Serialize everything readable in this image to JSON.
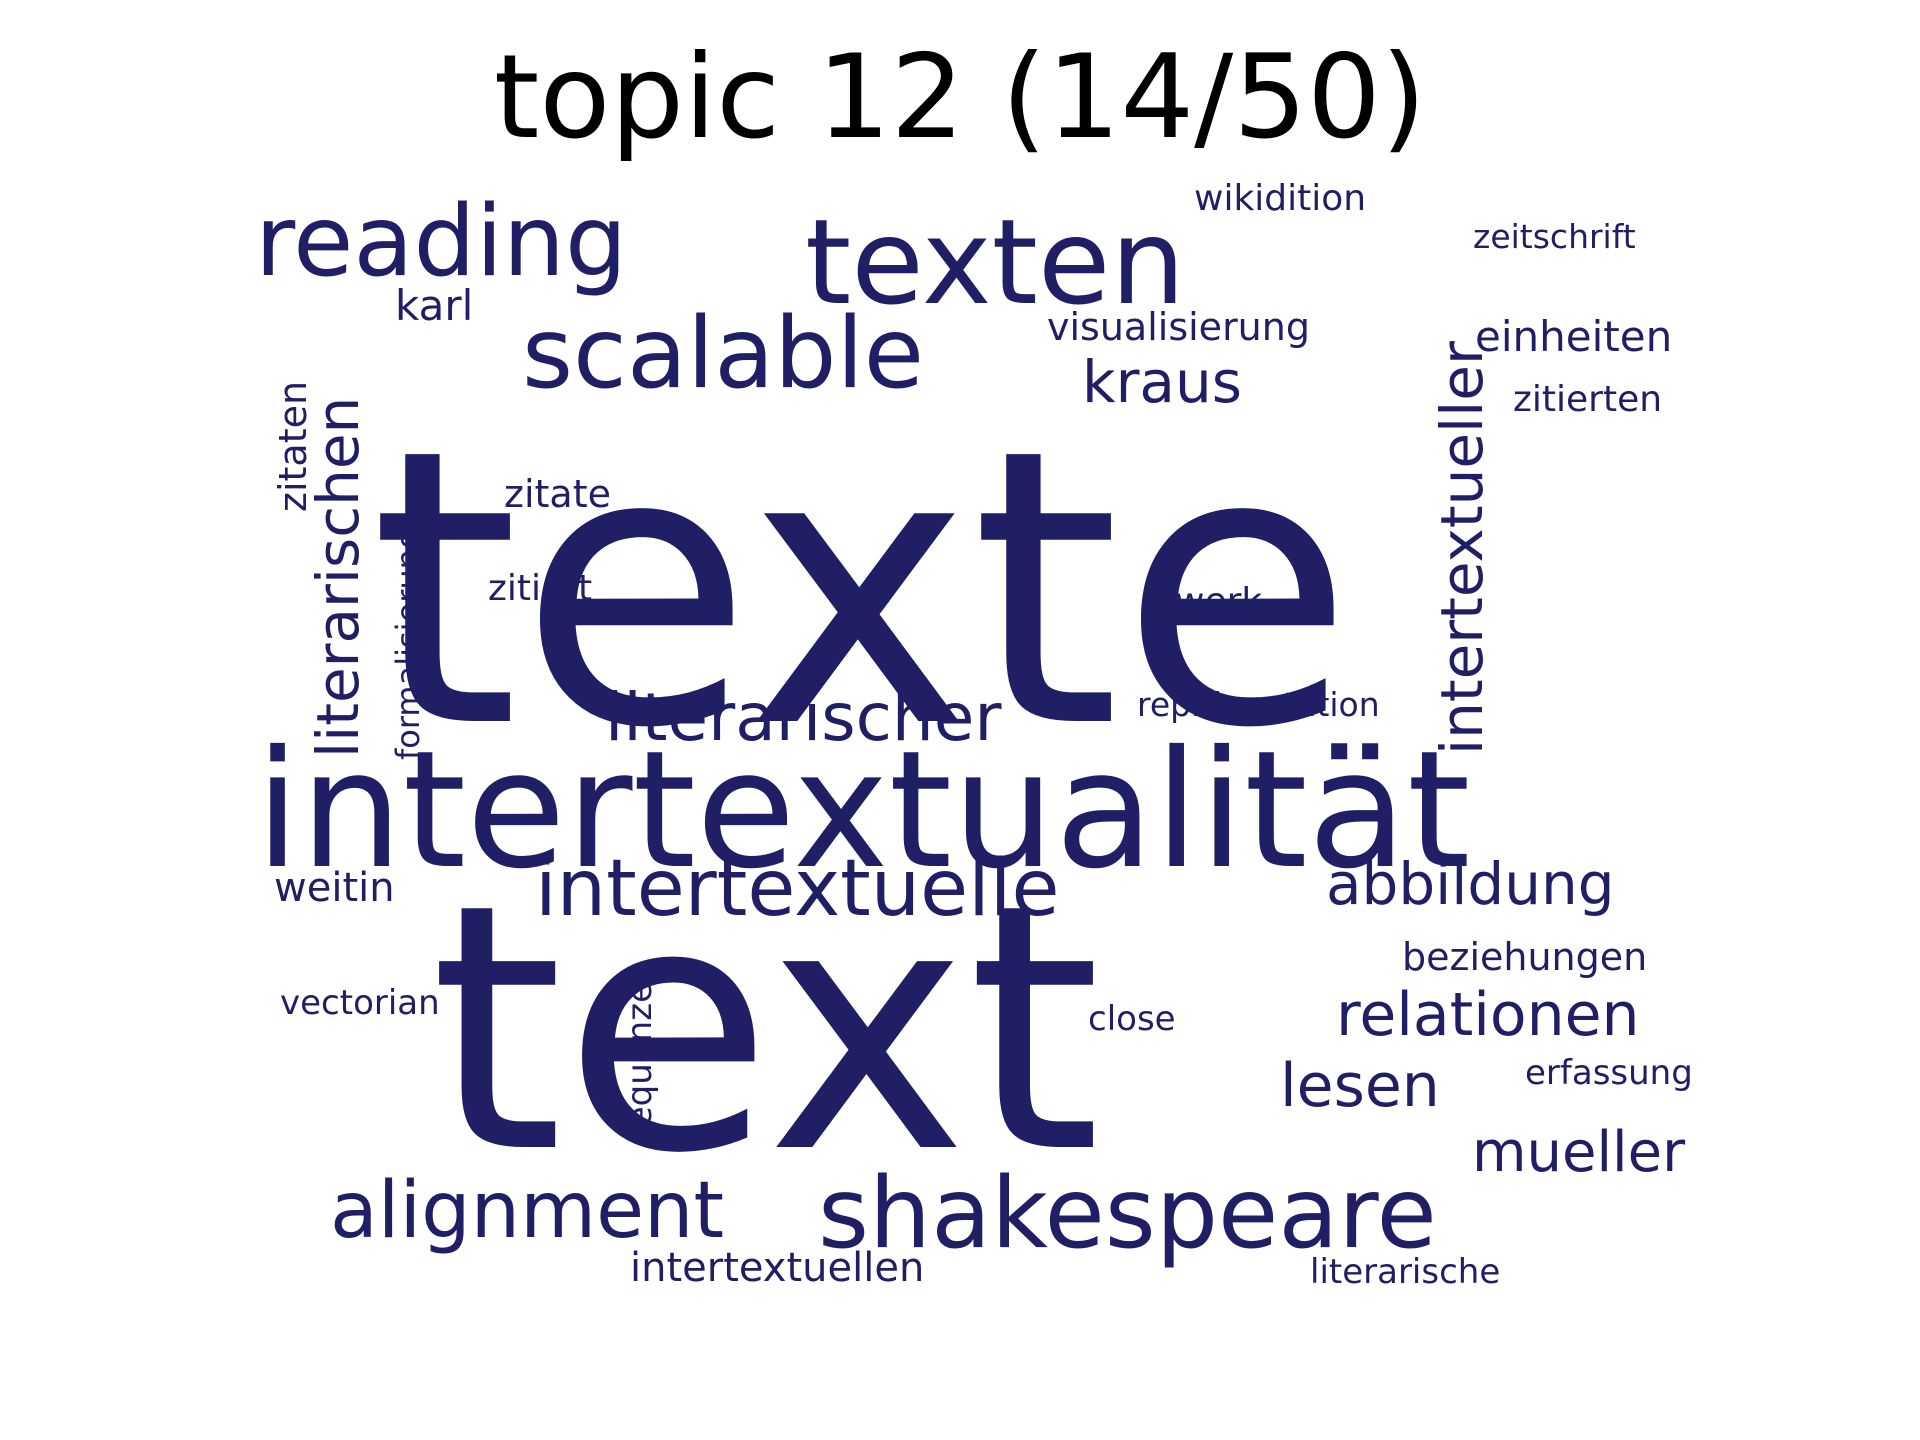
{
  "title": "topic 12 (14/50)",
  "word_color": "#201f66",
  "words": {
    "texte": "texte",
    "text": "text",
    "intertextualitaet": "intertextualität",
    "texten": "texten",
    "reading": "reading",
    "scalable": "scalable",
    "shakespeare": "shakespeare",
    "intertextuelle": "intertextuelle",
    "alignment": "alignment",
    "literarischer": "literarischer",
    "intertextueller": "intertextueller",
    "literarischen": "literarischen",
    "abbildung": "abbildung",
    "relationen": "relationen",
    "lesen": "lesen",
    "mueller": "mueller",
    "kraus": "kraus",
    "intertextuellen": "intertextuellen",
    "visualisierung": "visualisierung",
    "einheiten": "einheiten",
    "beziehungen": "beziehungen",
    "karl": "karl",
    "zitierten": "zitierten",
    "wikidition": "wikidition",
    "zeitschrift": "zeitschrift",
    "zitate": "zitate",
    "zitaten": "zitaten",
    "werk": "werk",
    "weitin": "weitin",
    "zitiert": "zitiert",
    "repraesentation": "repräsentation",
    "formalisierung": "formalisierung",
    "sequenzen": "sequenzen",
    "vectorian": "vectorian",
    "close": "close",
    "erfassung": "erfassung",
    "literarische": "literarische"
  }
}
